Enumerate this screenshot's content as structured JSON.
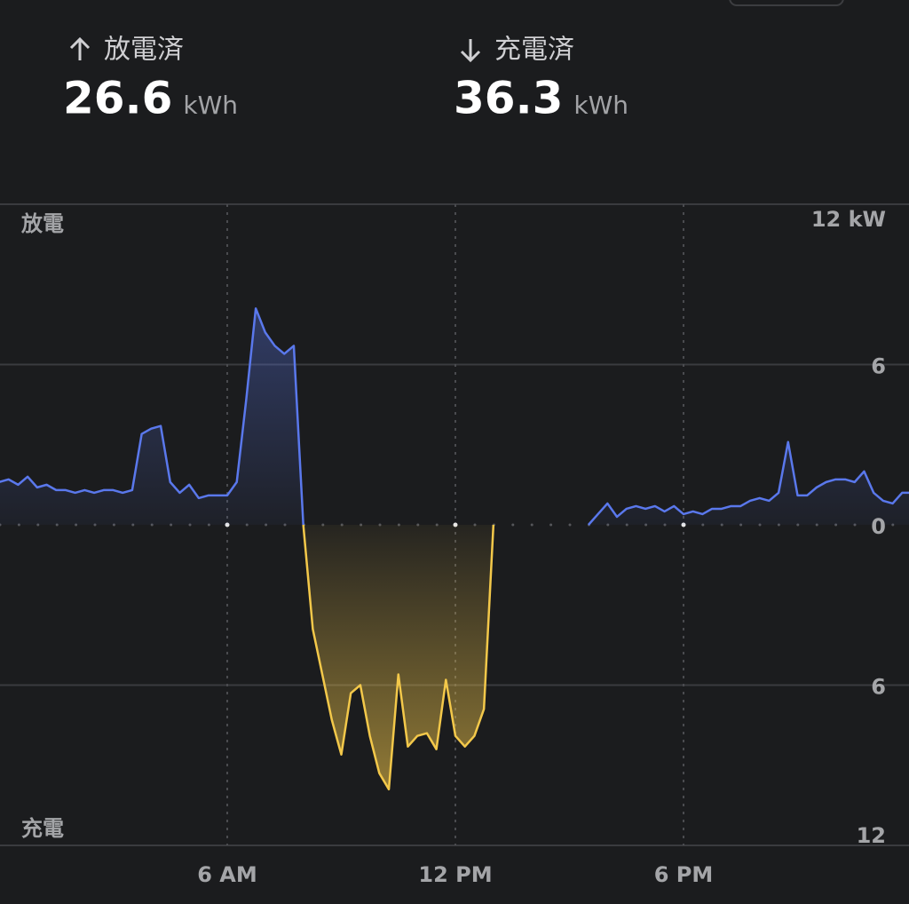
{
  "header": {
    "stats": [
      {
        "label": "放電済",
        "value": 26.6,
        "unit": "kWh"
      },
      {
        "label": "充電済",
        "value": 36.3,
        "unit": "kWh"
      }
    ]
  },
  "chart_data": {
    "type": "area",
    "top_label": "放電",
    "bottom_label": "充電",
    "xlim": [
      0,
      24
    ],
    "xticks": [
      {
        "value": 6,
        "label": "6 AM"
      },
      {
        "value": 12,
        "label": "12 PM"
      },
      {
        "value": 18,
        "label": "6 PM"
      }
    ],
    "ylim": [
      -12,
      12
    ],
    "yticks": [
      {
        "value": 12,
        "label": "12 kW"
      },
      6,
      0,
      {
        "value": -6,
        "label": "6"
      },
      {
        "value": -12,
        "label": "12"
      }
    ],
    "grid": true,
    "x": [
      0,
      0.25,
      0.5,
      0.75,
      1,
      1.25,
      1.5,
      1.75,
      2,
      2.25,
      2.5,
      2.75,
      3,
      3.25,
      3.5,
      3.75,
      4,
      4.25,
      4.5,
      4.75,
      5,
      5.25,
      5.5,
      5.75,
      6,
      6.25,
      6.5,
      6.75,
      7,
      7.25,
      7.5,
      7.75,
      8,
      8.25,
      8.5,
      8.75,
      9,
      9.25,
      9.5,
      9.75,
      10,
      10.25,
      10.5,
      10.75,
      11,
      11.25,
      11.5,
      11.75,
      12,
      12.25,
      12.5,
      12.75,
      13,
      13.25,
      13.5,
      13.75,
      14,
      14.25,
      14.5,
      14.75,
      15,
      15.25,
      15.5,
      15.75,
      16,
      16.25,
      16.5,
      16.75,
      17,
      17.25,
      17.5,
      17.75,
      18,
      18.25,
      18.5,
      18.75,
      19,
      19.25,
      19.5,
      19.75,
      20,
      20.25,
      20.5,
      20.75,
      21,
      21.25,
      21.5,
      21.75,
      22,
      22.25,
      22.5,
      22.75,
      23,
      23.25,
      23.5,
      23.75,
      24
    ],
    "series": [
      {
        "color": "#5a78ec",
        "values": [
          1.6,
          1.7,
          1.5,
          1.8,
          1.4,
          1.5,
          1.3,
          1.3,
          1.2,
          1.3,
          1.2,
          1.3,
          1.3,
          1.2,
          1.3,
          3.4,
          3.6,
          3.7,
          1.6,
          1.2,
          1.5,
          1.0,
          1.1,
          1.1,
          1.1,
          1.6,
          4.7,
          8.1,
          7.2,
          6.7,
          6.4,
          6.7,
          0,
          null,
          null,
          null,
          null,
          null,
          null,
          null,
          null,
          null,
          null,
          null,
          null,
          null,
          null,
          null,
          null,
          null,
          null,
          null,
          null,
          null,
          null,
          null,
          null,
          null,
          null,
          null,
          null,
          null,
          0,
          0.4,
          0.8,
          0.3,
          0.6,
          0.7,
          0.6,
          0.7,
          0.5,
          0.7,
          0.4,
          0.5,
          0.4,
          0.6,
          0.6,
          0.7,
          0.7,
          0.9,
          1.0,
          0.9,
          1.2,
          3.1,
          1.1,
          1.1,
          1.4,
          1.6,
          1.7,
          1.7,
          1.6,
          2.0,
          1.2,
          0.9,
          0.8,
          1.2,
          1.2
        ]
      },
      {
        "color": "#f3c84a",
        "values": [
          null,
          null,
          null,
          null,
          null,
          null,
          null,
          null,
          null,
          null,
          null,
          null,
          null,
          null,
          null,
          null,
          null,
          null,
          null,
          null,
          null,
          null,
          null,
          null,
          null,
          null,
          null,
          null,
          null,
          null,
          null,
          null,
          0,
          -3.9,
          -5.6,
          -7.3,
          -8.6,
          -6.3,
          -6.0,
          -7.9,
          -9.3,
          -9.9,
          -5.6,
          -8.3,
          -7.9,
          -7.8,
          -8.4,
          -5.8,
          -7.9,
          -8.3,
          -7.9,
          -6.9,
          0,
          null,
          null,
          null,
          null,
          null,
          null,
          null,
          null,
          null,
          null,
          null,
          null,
          null,
          null,
          null,
          null,
          null,
          null,
          null,
          null,
          null,
          null,
          null,
          null,
          null,
          null,
          null,
          null,
          null,
          null,
          null,
          null,
          null,
          null,
          null,
          null,
          null,
          null,
          null,
          null,
          null,
          null,
          null,
          null
        ]
      }
    ]
  }
}
